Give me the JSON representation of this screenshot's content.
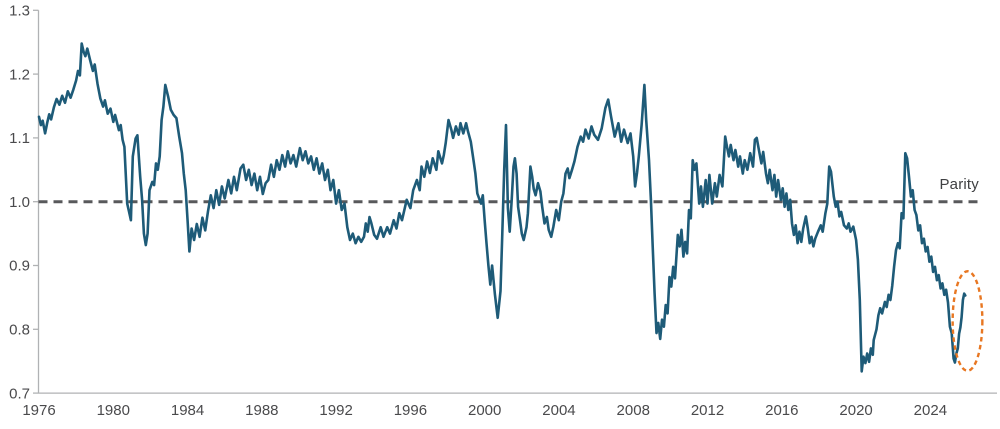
{
  "chart_data": {
    "type": "line",
    "xlabel": "",
    "ylabel": "",
    "ylim": [
      0.7,
      1.3
    ],
    "xlim": [
      1976,
      2026.2
    ],
    "grid": false,
    "yticks": [
      1.3,
      1.2,
      1.1,
      1.0,
      0.9,
      0.8,
      0.7
    ],
    "xticks": [
      1976,
      1980,
      1984,
      1988,
      1992,
      1996,
      2000,
      2004,
      2008,
      2012,
      2016,
      2020,
      2024
    ],
    "reference_line": {
      "value": 1.0,
      "label": "Parity"
    },
    "annotation_ellipse": {
      "year": 2026.0,
      "value": 0.813,
      "rx_years": 0.8,
      "ry_value": 0.078
    },
    "colors": {
      "series": "#1e5b78",
      "reference_line": "#58595b",
      "annotation": "#e87722",
      "axis": "#b0b2b4",
      "tick_text": "#4a4a4c"
    },
    "points": [
      [
        1976.0,
        1.133
      ],
      [
        1976.1,
        1.12
      ],
      [
        1976.2,
        1.127
      ],
      [
        1976.33,
        1.107
      ],
      [
        1976.45,
        1.125
      ],
      [
        1976.55,
        1.137
      ],
      [
        1976.65,
        1.129
      ],
      [
        1976.8,
        1.148
      ],
      [
        1976.95,
        1.161
      ],
      [
        1977.1,
        1.152
      ],
      [
        1977.25,
        1.166
      ],
      [
        1977.4,
        1.155
      ],
      [
        1977.55,
        1.173
      ],
      [
        1977.7,
        1.163
      ],
      [
        1977.85,
        1.176
      ],
      [
        1978.0,
        1.19
      ],
      [
        1978.1,
        1.205
      ],
      [
        1978.2,
        1.198
      ],
      [
        1978.3,
        1.248
      ],
      [
        1978.4,
        1.235
      ],
      [
        1978.5,
        1.228
      ],
      [
        1978.6,
        1.24
      ],
      [
        1978.75,
        1.222
      ],
      [
        1978.9,
        1.205
      ],
      [
        1979.0,
        1.215
      ],
      [
        1979.15,
        1.185
      ],
      [
        1979.3,
        1.162
      ],
      [
        1979.45,
        1.149
      ],
      [
        1979.55,
        1.159
      ],
      [
        1979.7,
        1.138
      ],
      [
        1979.85,
        1.146
      ],
      [
        1980.0,
        1.125
      ],
      [
        1980.1,
        1.136
      ],
      [
        1980.3,
        1.112
      ],
      [
        1980.4,
        1.12
      ],
      [
        1980.5,
        1.097
      ],
      [
        1980.6,
        1.086
      ],
      [
        1980.75,
        0.997
      ],
      [
        1980.85,
        0.984
      ],
      [
        1980.95,
        0.971
      ],
      [
        1981.05,
        1.071
      ],
      [
        1981.2,
        1.099
      ],
      [
        1981.3,
        1.104
      ],
      [
        1981.45,
        1.039
      ],
      [
        1981.55,
        1.003
      ],
      [
        1981.65,
        0.95
      ],
      [
        1981.75,
        0.932
      ],
      [
        1981.85,
        0.95
      ],
      [
        1981.95,
        1.018
      ],
      [
        1982.1,
        1.031
      ],
      [
        1982.2,
        1.026
      ],
      [
        1982.3,
        1.06
      ],
      [
        1982.4,
        1.05
      ],
      [
        1982.5,
        1.071
      ],
      [
        1982.6,
        1.128
      ],
      [
        1982.7,
        1.149
      ],
      [
        1982.8,
        1.183
      ],
      [
        1982.95,
        1.165
      ],
      [
        1983.1,
        1.144
      ],
      [
        1983.25,
        1.136
      ],
      [
        1983.4,
        1.131
      ],
      [
        1983.55,
        1.102
      ],
      [
        1983.7,
        1.076
      ],
      [
        1983.8,
        1.044
      ],
      [
        1983.9,
        1.018
      ],
      [
        1984.0,
        0.97
      ],
      [
        1984.1,
        0.922
      ],
      [
        1984.22,
        0.958
      ],
      [
        1984.35,
        0.94
      ],
      [
        1984.5,
        0.965
      ],
      [
        1984.65,
        0.945
      ],
      [
        1984.8,
        0.975
      ],
      [
        1984.95,
        0.955
      ],
      [
        1985.1,
        0.985
      ],
      [
        1985.25,
        1.01
      ],
      [
        1985.4,
        0.99
      ],
      [
        1985.55,
        1.018
      ],
      [
        1985.7,
        0.995
      ],
      [
        1985.85,
        1.024
      ],
      [
        1986.0,
        1.005
      ],
      [
        1986.2,
        1.034
      ],
      [
        1986.35,
        1.013
      ],
      [
        1986.5,
        1.039
      ],
      [
        1986.65,
        1.018
      ],
      [
        1986.85,
        1.052
      ],
      [
        1987.0,
        1.058
      ],
      [
        1987.15,
        1.034
      ],
      [
        1987.3,
        1.05
      ],
      [
        1987.45,
        1.026
      ],
      [
        1987.6,
        1.044
      ],
      [
        1987.75,
        1.018
      ],
      [
        1987.9,
        1.039
      ],
      [
        1988.05,
        1.012
      ],
      [
        1988.2,
        1.029
      ],
      [
        1988.35,
        1.034
      ],
      [
        1988.5,
        1.058
      ],
      [
        1988.65,
        1.039
      ],
      [
        1988.8,
        1.065
      ],
      [
        1988.95,
        1.05
      ],
      [
        1989.1,
        1.073
      ],
      [
        1989.25,
        1.055
      ],
      [
        1989.4,
        1.079
      ],
      [
        1989.55,
        1.06
      ],
      [
        1989.7,
        1.073
      ],
      [
        1989.85,
        1.055
      ],
      [
        1990.05,
        1.084
      ],
      [
        1990.2,
        1.065
      ],
      [
        1990.35,
        1.079
      ],
      [
        1990.5,
        1.06
      ],
      [
        1990.65,
        1.071
      ],
      [
        1990.8,
        1.05
      ],
      [
        1990.95,
        1.068
      ],
      [
        1991.1,
        1.044
      ],
      [
        1991.25,
        1.06
      ],
      [
        1991.4,
        1.034
      ],
      [
        1991.55,
        1.05
      ],
      [
        1991.7,
        1.018
      ],
      [
        1991.85,
        1.034
      ],
      [
        1992.0,
        0.997
      ],
      [
        1992.15,
        1.018
      ],
      [
        1992.3,
        0.987
      ],
      [
        1992.45,
        0.997
      ],
      [
        1992.6,
        0.96
      ],
      [
        1992.75,
        0.94
      ],
      [
        1992.9,
        0.95
      ],
      [
        1993.05,
        0.935
      ],
      [
        1993.2,
        0.945
      ],
      [
        1993.35,
        0.937
      ],
      [
        1993.5,
        0.945
      ],
      [
        1993.6,
        0.966
      ],
      [
        1993.7,
        0.953
      ],
      [
        1993.8,
        0.976
      ],
      [
        1993.9,
        0.966
      ],
      [
        1994.05,
        0.948
      ],
      [
        1994.2,
        0.942
      ],
      [
        1994.4,
        0.96
      ],
      [
        1994.55,
        0.945
      ],
      [
        1994.75,
        0.96
      ],
      [
        1994.9,
        0.95
      ],
      [
        1995.1,
        0.971
      ],
      [
        1995.25,
        0.958
      ],
      [
        1995.4,
        0.982
      ],
      [
        1995.55,
        0.971
      ],
      [
        1995.8,
        1.003
      ],
      [
        1996.0,
        0.99
      ],
      [
        1996.15,
        1.018
      ],
      [
        1996.35,
        1.034
      ],
      [
        1996.5,
        1.018
      ],
      [
        1996.6,
        1.055
      ],
      [
        1996.75,
        1.039
      ],
      [
        1996.9,
        1.063
      ],
      [
        1997.05,
        1.045
      ],
      [
        1997.2,
        1.068
      ],
      [
        1997.4,
        1.05
      ],
      [
        1997.5,
        1.079
      ],
      [
        1997.7,
        1.06
      ],
      [
        1997.8,
        1.073
      ],
      [
        1997.9,
        1.092
      ],
      [
        1998.05,
        1.128
      ],
      [
        1998.2,
        1.113
      ],
      [
        1998.3,
        1.1
      ],
      [
        1998.45,
        1.118
      ],
      [
        1998.6,
        1.105
      ],
      [
        1998.7,
        1.123
      ],
      [
        1998.85,
        1.107
      ],
      [
        1999.0,
        1.123
      ],
      [
        1999.1,
        1.11
      ],
      [
        1999.25,
        1.094
      ],
      [
        1999.4,
        1.065
      ],
      [
        1999.5,
        1.044
      ],
      [
        1999.6,
        1.013
      ],
      [
        1999.8,
        0.997
      ],
      [
        1999.9,
        1.01
      ],
      [
        2000.0,
        0.97
      ],
      [
        2000.1,
        0.935
      ],
      [
        2000.2,
        0.9
      ],
      [
        2000.3,
        0.87
      ],
      [
        2000.4,
        0.9
      ],
      [
        2000.55,
        0.855
      ],
      [
        2000.7,
        0.818
      ],
      [
        2000.85,
        0.86
      ],
      [
        2000.95,
        0.95
      ],
      [
        2001.05,
        1.05
      ],
      [
        2001.15,
        1.12
      ],
      [
        2001.25,
        0.99
      ],
      [
        2001.35,
        0.953
      ],
      [
        2001.45,
        1.0
      ],
      [
        2001.55,
        1.055
      ],
      [
        2001.63,
        1.068
      ],
      [
        2001.72,
        1.044
      ],
      [
        2001.8,
        0.992
      ],
      [
        2001.9,
        0.971
      ],
      [
        2002.0,
        0.95
      ],
      [
        2002.1,
        0.94
      ],
      [
        2002.25,
        0.96
      ],
      [
        2002.33,
        0.982
      ],
      [
        2002.46,
        1.055
      ],
      [
        2002.56,
        1.039
      ],
      [
        2002.64,
        1.02
      ],
      [
        2002.74,
        1.01
      ],
      [
        2002.87,
        1.029
      ],
      [
        2003.0,
        1.016
      ],
      [
        2003.1,
        0.992
      ],
      [
        2003.22,
        0.966
      ],
      [
        2003.35,
        0.976
      ],
      [
        2003.45,
        0.956
      ],
      [
        2003.58,
        0.945
      ],
      [
        2003.7,
        0.961
      ],
      [
        2003.85,
        0.987
      ],
      [
        2003.99,
        0.971
      ],
      [
        2004.12,
        1.0
      ],
      [
        2004.24,
        1.013
      ],
      [
        2004.35,
        1.044
      ],
      [
        2004.47,
        1.052
      ],
      [
        2004.56,
        1.037
      ],
      [
        2004.7,
        1.05
      ],
      [
        2004.83,
        1.063
      ],
      [
        2005.0,
        1.086
      ],
      [
        2005.17,
        1.102
      ],
      [
        2005.3,
        1.094
      ],
      [
        2005.43,
        1.113
      ],
      [
        2005.6,
        1.099
      ],
      [
        2005.75,
        1.118
      ],
      [
        2005.9,
        1.105
      ],
      [
        2006.1,
        1.097
      ],
      [
        2006.3,
        1.115
      ],
      [
        2006.5,
        1.147
      ],
      [
        2006.65,
        1.16
      ],
      [
        2006.8,
        1.134
      ],
      [
        2007.0,
        1.102
      ],
      [
        2007.2,
        1.123
      ],
      [
        2007.35,
        1.094
      ],
      [
        2007.5,
        1.113
      ],
      [
        2007.7,
        1.092
      ],
      [
        2007.85,
        1.107
      ],
      [
        2008.0,
        1.071
      ],
      [
        2008.1,
        1.024
      ],
      [
        2008.2,
        1.045
      ],
      [
        2008.3,
        1.071
      ],
      [
        2008.45,
        1.12
      ],
      [
        2008.6,
        1.183
      ],
      [
        2008.7,
        1.128
      ],
      [
        2008.85,
        1.065
      ],
      [
        2008.95,
        1.003
      ],
      [
        2009.05,
        0.93
      ],
      [
        2009.15,
        0.856
      ],
      [
        2009.25,
        0.794
      ],
      [
        2009.35,
        0.81
      ],
      [
        2009.45,
        0.785
      ],
      [
        2009.55,
        0.815
      ],
      [
        2009.65,
        0.804
      ],
      [
        2009.75,
        0.838
      ],
      [
        2009.85,
        0.825
      ],
      [
        2009.95,
        0.882
      ],
      [
        2010.05,
        0.867
      ],
      [
        2010.15,
        0.898
      ],
      [
        2010.25,
        0.88
      ],
      [
        2010.4,
        0.948
      ],
      [
        2010.5,
        0.93
      ],
      [
        2010.6,
        0.956
      ],
      [
        2010.7,
        0.914
      ],
      [
        2010.8,
        0.937
      ],
      [
        2010.9,
        0.919
      ],
      [
        2011.0,
        0.987
      ],
      [
        2011.1,
        0.974
      ],
      [
        2011.2,
        1.065
      ],
      [
        2011.3,
        1.05
      ],
      [
        2011.4,
        1.06
      ],
      [
        2011.55,
        0.997
      ],
      [
        2011.65,
        1.024
      ],
      [
        2011.75,
        0.992
      ],
      [
        2011.9,
        1.034
      ],
      [
        2012.0,
        0.997
      ],
      [
        2012.1,
        1.042
      ],
      [
        2012.25,
        0.997
      ],
      [
        2012.4,
        1.029
      ],
      [
        2012.5,
        1.008
      ],
      [
        2012.65,
        1.042
      ],
      [
        2012.8,
        1.024
      ],
      [
        2012.95,
        1.102
      ],
      [
        2013.05,
        1.086
      ],
      [
        2013.15,
        1.071
      ],
      [
        2013.25,
        1.089
      ],
      [
        2013.4,
        1.065
      ],
      [
        2013.5,
        1.081
      ],
      [
        2013.65,
        1.055
      ],
      [
        2013.75,
        1.071
      ],
      [
        2013.9,
        1.044
      ],
      [
        2014.0,
        1.065
      ],
      [
        2014.15,
        1.05
      ],
      [
        2014.3,
        1.076
      ],
      [
        2014.45,
        1.055
      ],
      [
        2014.55,
        1.097
      ],
      [
        2014.65,
        1.1
      ],
      [
        2014.8,
        1.076
      ],
      [
        2014.9,
        1.06
      ],
      [
        2015.0,
        1.078
      ],
      [
        2015.15,
        1.044
      ],
      [
        2015.25,
        1.029
      ],
      [
        2015.35,
        1.05
      ],
      [
        2015.5,
        1.018
      ],
      [
        2015.6,
        1.042
      ],
      [
        2015.7,
        1.008
      ],
      [
        2015.8,
        1.034
      ],
      [
        2015.95,
        1.003
      ],
      [
        2016.05,
        1.021
      ],
      [
        2016.15,
        0.992
      ],
      [
        2016.25,
        1.013
      ],
      [
        2016.35,
        0.987
      ],
      [
        2016.45,
        1.003
      ],
      [
        2016.55,
        0.966
      ],
      [
        2016.65,
        0.948
      ],
      [
        2016.75,
        0.963
      ],
      [
        2016.85,
        0.935
      ],
      [
        2016.95,
        0.953
      ],
      [
        2017.05,
        0.937
      ],
      [
        2017.15,
        0.958
      ],
      [
        2017.3,
        0.977
      ],
      [
        2017.4,
        0.958
      ],
      [
        2017.5,
        0.935
      ],
      [
        2017.6,
        0.945
      ],
      [
        2017.7,
        0.93
      ],
      [
        2017.8,
        0.942
      ],
      [
        2017.95,
        0.953
      ],
      [
        2018.1,
        0.963
      ],
      [
        2018.2,
        0.953
      ],
      [
        2018.35,
        0.982
      ],
      [
        2018.45,
        0.997
      ],
      [
        2018.55,
        1.055
      ],
      [
        2018.65,
        1.047
      ],
      [
        2018.8,
        1.008
      ],
      [
        2018.9,
        0.992
      ],
      [
        2019.0,
        1.0
      ],
      [
        2019.1,
        0.977
      ],
      [
        2019.2,
        0.984
      ],
      [
        2019.35,
        0.963
      ],
      [
        2019.5,
        0.958
      ],
      [
        2019.6,
        0.966
      ],
      [
        2019.7,
        0.953
      ],
      [
        2019.85,
        0.961
      ],
      [
        2020.0,
        0.94
      ],
      [
        2020.1,
        0.909
      ],
      [
        2020.2,
        0.846
      ],
      [
        2020.3,
        0.734
      ],
      [
        2020.4,
        0.757
      ],
      [
        2020.5,
        0.747
      ],
      [
        2020.6,
        0.762
      ],
      [
        2020.7,
        0.749
      ],
      [
        2020.8,
        0.77
      ],
      [
        2020.9,
        0.76
      ],
      [
        2020.95,
        0.783
      ],
      [
        2021.1,
        0.8
      ],
      [
        2021.2,
        0.822
      ],
      [
        2021.3,
        0.833
      ],
      [
        2021.4,
        0.825
      ],
      [
        2021.55,
        0.843
      ],
      [
        2021.65,
        0.835
      ],
      [
        2021.75,
        0.854
      ],
      [
        2021.85,
        0.846
      ],
      [
        2021.95,
        0.869
      ],
      [
        2022.05,
        0.898
      ],
      [
        2022.15,
        0.924
      ],
      [
        2022.25,
        0.935
      ],
      [
        2022.35,
        0.927
      ],
      [
        2022.45,
        0.982
      ],
      [
        2022.55,
        0.974
      ],
      [
        2022.65,
        1.076
      ],
      [
        2022.75,
        1.068
      ],
      [
        2022.85,
        1.039
      ],
      [
        2022.95,
        1.008
      ],
      [
        2023.05,
        1.018
      ],
      [
        2023.15,
        0.987
      ],
      [
        2023.25,
        0.979
      ],
      [
        2023.35,
        0.955
      ],
      [
        2023.45,
        0.963
      ],
      [
        2023.55,
        0.935
      ],
      [
        2023.65,
        0.942
      ],
      [
        2023.75,
        0.922
      ],
      [
        2023.85,
        0.929
      ],
      [
        2023.95,
        0.906
      ],
      [
        2024.05,
        0.914
      ],
      [
        2024.15,
        0.89
      ],
      [
        2024.25,
        0.898
      ],
      [
        2024.35,
        0.877
      ],
      [
        2024.45,
        0.885
      ],
      [
        2024.55,
        0.864
      ],
      [
        2024.65,
        0.872
      ],
      [
        2024.75,
        0.854
      ],
      [
        2024.85,
        0.862
      ],
      [
        2024.95,
        0.842
      ],
      [
        2025.05,
        0.804
      ],
      [
        2025.15,
        0.794
      ],
      [
        2025.25,
        0.754
      ],
      [
        2025.32,
        0.748
      ],
      [
        2025.4,
        0.762
      ],
      [
        2025.48,
        0.77
      ],
      [
        2025.55,
        0.793
      ],
      [
        2025.62,
        0.803
      ],
      [
        2025.68,
        0.819
      ],
      [
        2025.75,
        0.846
      ],
      [
        2025.82,
        0.856
      ],
      [
        2025.88,
        0.853
      ]
    ]
  }
}
